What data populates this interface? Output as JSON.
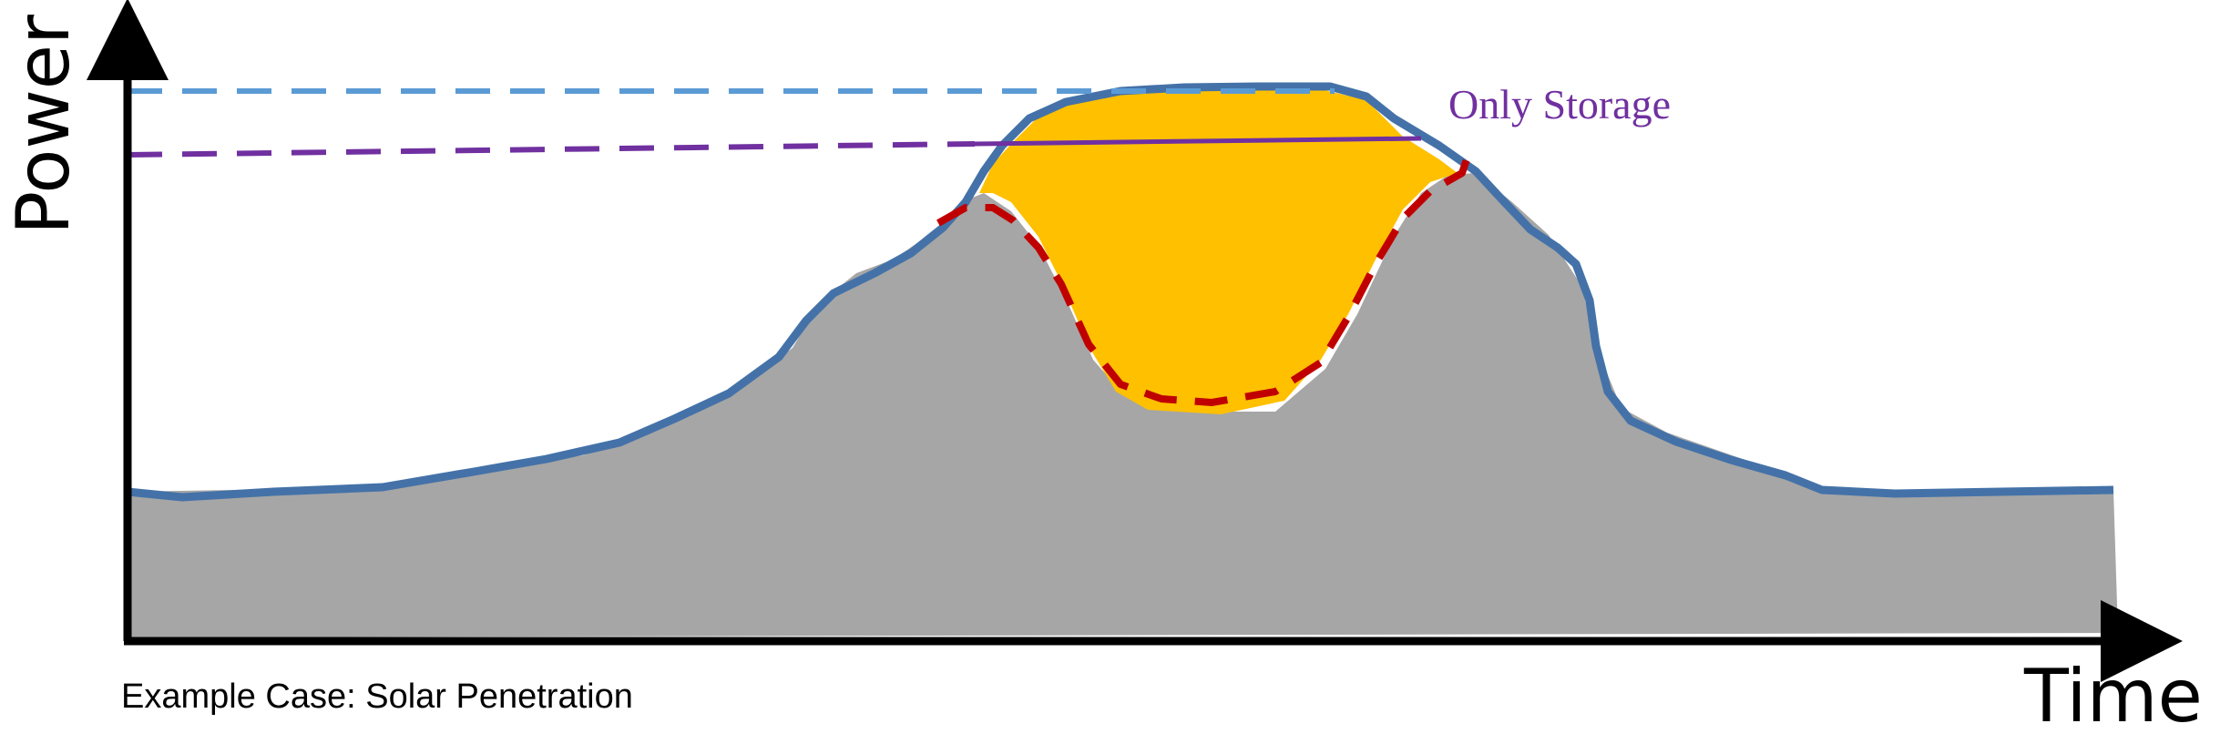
{
  "y_axis_title": "Power",
  "x_axis_title": "Time",
  "caption": "Example Case: Solar Penetration",
  "annotations": {
    "only_storage": "Only Storage"
  },
  "colors": {
    "baseload_fill": "#a6a6a6",
    "original_demand_line": "#4472a8",
    "solar_reduction_fill": "#ffc000",
    "net_demand_dashed": "#c00000",
    "original_peak_dashed": "#5b9bd5",
    "storage_threshold": "#7030a0",
    "axes": "#000000"
  }
}
